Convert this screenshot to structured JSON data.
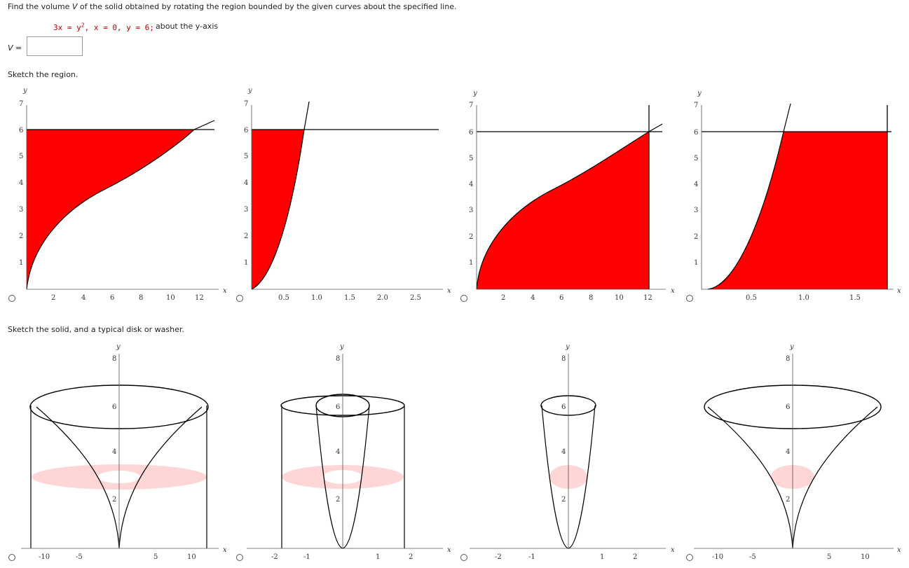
{
  "question": {
    "prefix": "Find the volume ",
    "var": "V",
    "suffix": " of the solid obtained by rotating the region bounded by the given curves about the specified line.",
    "curves": "3x = y2, x = 0, y = 6;",
    "about": "about the y-axis"
  },
  "answer": {
    "label": "V =",
    "value": ""
  },
  "sections": {
    "region_title": "Sketch the region.",
    "solid_title": "Sketch the solid, and a typical disk or washer."
  },
  "colors": {
    "fill_red": "#ff0000",
    "washer_pink": "#ffd6d6",
    "curve": "#000000"
  },
  "region_options": [
    {
      "id": "r1",
      "xlabel": "x",
      "ylabel": "y",
      "xticks": [
        "2",
        "4",
        "6",
        "8",
        "10",
        "12"
      ],
      "yticks": [
        "1",
        "2",
        "3",
        "4",
        "5",
        "6",
        "7"
      ]
    },
    {
      "id": "r2",
      "xlabel": "x",
      "ylabel": "y",
      "xticks": [
        "0.5",
        "1.0",
        "1.5",
        "2.0",
        "2.5"
      ],
      "yticks": [
        "1",
        "2",
        "3",
        "4",
        "5",
        "6",
        "7"
      ]
    },
    {
      "id": "r3",
      "xlabel": "x",
      "ylabel": "y",
      "xticks": [
        "2",
        "4",
        "6",
        "8",
        "10",
        "12"
      ],
      "yticks": [
        "1",
        "2",
        "3",
        "4",
        "5",
        "6",
        "7"
      ]
    },
    {
      "id": "r4",
      "xlabel": "x",
      "ylabel": "y",
      "xticks": [
        "0.5",
        "1.0",
        "1.5"
      ],
      "yticks": [
        "1",
        "2",
        "3",
        "4",
        "5",
        "6",
        "7"
      ]
    }
  ],
  "solid_options": [
    {
      "id": "s1",
      "xlabel": "x",
      "ylabel": "y",
      "xticks": [
        "-10",
        "-5",
        "5",
        "10"
      ],
      "yticks": [
        "2",
        "4",
        "6",
        "8"
      ]
    },
    {
      "id": "s2",
      "xlabel": "x",
      "ylabel": "y",
      "xticks": [
        "-2",
        "-1",
        "1",
        "2"
      ],
      "yticks": [
        "2",
        "4",
        "6",
        "8"
      ]
    },
    {
      "id": "s3",
      "xlabel": "x",
      "ylabel": "y",
      "xticks": [
        "-2",
        "-1",
        "1",
        "2"
      ],
      "yticks": [
        "2",
        "4",
        "6",
        "8"
      ]
    },
    {
      "id": "s4",
      "xlabel": "x",
      "ylabel": "y",
      "xticks": [
        "-10",
        "-5",
        "5",
        "10"
      ],
      "yticks": [
        "2",
        "4",
        "6",
        "8"
      ]
    }
  ]
}
